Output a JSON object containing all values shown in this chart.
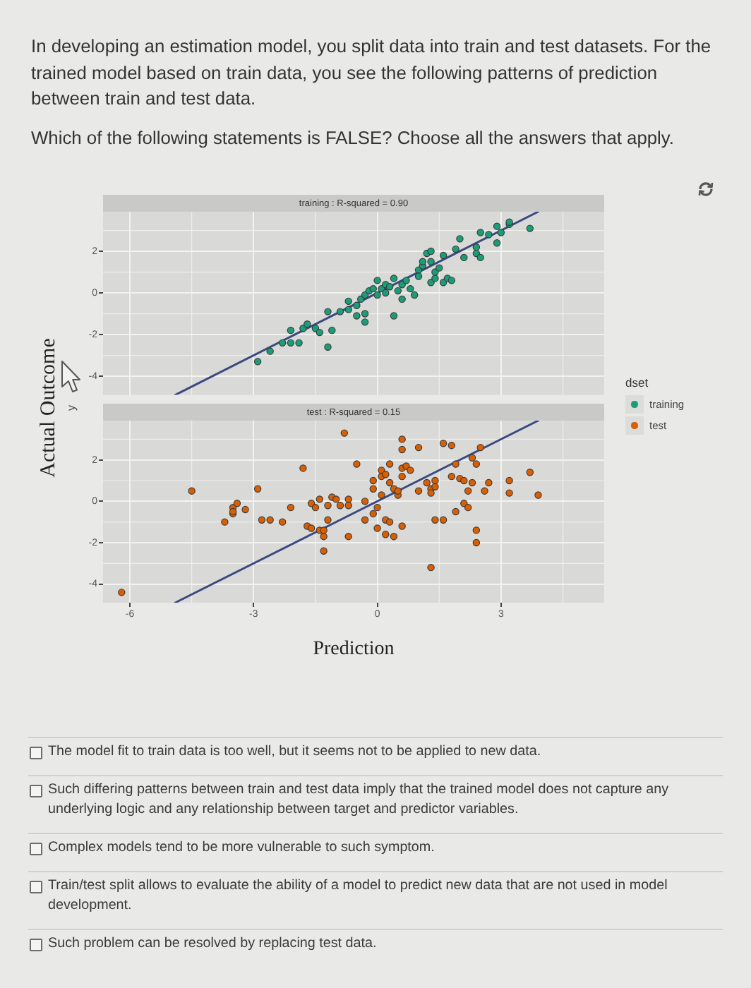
{
  "chart_data": [
    {
      "type": "other",
      "title": "In developing an estimation model, you split data into train and test datasets. For the trained model based on train data, you see the following patterns of prediction between train and test data.",
      "subtitle": "Which of the following statements is FALSE? Choose all the answers that apply."
    },
    {
      "type": "scatter",
      "title": "training : R-squared = 0.90",
      "ylabel": "y",
      "legend_title": "dset",
      "legend": "right",
      "grid": true,
      "marker": "circle",
      "tick_labels": "y",
      "xlim": [
        -6.65,
        5.5
      ],
      "xticks": [
        -6,
        -3,
        0,
        3
      ],
      "ylim": [
        -4.9,
        3.9
      ],
      "yticks": [
        -4,
        -2,
        0,
        2
      ],
      "series": [
        {
          "name": "training",
          "color": "#1b9e77",
          "x": [
            -2.9,
            -2.6,
            -2.3,
            -2.1,
            -1.9,
            -2.1,
            -1.8,
            -1.7,
            -1.5,
            -1.4,
            -1.2,
            -1.1,
            -1.2,
            -0.9,
            -0.7,
            -0.7,
            -0.5,
            -0.5,
            -0.3,
            -0.3,
            -0.4,
            -0.3,
            -0.2,
            -0.1,
            0,
            0,
            0.1,
            0.2,
            0.2,
            0.3,
            0.4,
            0.4,
            0.5,
            0.6,
            0.6,
            0.7,
            0.8,
            0.9,
            1.0,
            1.0,
            1.1,
            1.1,
            1.2,
            1.3,
            1.3,
            1.3,
            1.4,
            1.4,
            1.5,
            1.6,
            1.6,
            1.7,
            1.8,
            1.9,
            2.0,
            2.1,
            2.4,
            2.4,
            2.5,
            2.5,
            2.7,
            2.9,
            2.9,
            3.0,
            3.2,
            3.2,
            3.7
          ],
          "values": [
            -3.3,
            -2.8,
            -2.4,
            -2.4,
            -2.4,
            -1.8,
            -1.7,
            -1.5,
            -1.7,
            -1.9,
            -2.6,
            -1.8,
            -0.9,
            -0.9,
            -0.4,
            -0.8,
            -0.6,
            -1.1,
            -1.0,
            -1.4,
            -0.3,
            -0.1,
            0.1,
            0.2,
            0.6,
            -0.1,
            0.2,
            0.4,
            0,
            0.3,
            -1.1,
            0.7,
            0.1,
            -0.3,
            0.4,
            0.6,
            0.2,
            -0.1,
            1.1,
            0.8,
            1.3,
            1.5,
            1.9,
            1.5,
            2.0,
            0.5,
            1.0,
            0.7,
            1.2,
            1.8,
            0.5,
            0.7,
            0.6,
            2.1,
            2.6,
            1.7,
            2.2,
            1.9,
            1.7,
            2.9,
            2.8,
            2.4,
            3.2,
            2.9,
            3.3,
            3.4,
            3.1
          ]
        },
        {
          "type": "line",
          "marker": "none",
          "color": "#3b4a80",
          "x": [
            -4.9,
            3.9
          ],
          "values": [
            -4.9,
            3.9
          ]
        }
      ]
    },
    {
      "type": "scatter",
      "title": "test : R-squared = 0.15",
      "ylabel": "Actual Outcome",
      "xlabel": "Prediction",
      "legend": "right",
      "grid": true,
      "marker": "circle",
      "xlim": [
        -6.65,
        5.5
      ],
      "xticks": [
        -6,
        -3,
        0,
        3
      ],
      "ylim": [
        -4.9,
        3.9
      ],
      "yticks": [
        -4,
        -2,
        0,
        2
      ],
      "series": [
        {
          "name": "test",
          "color": "#d95f02",
          "x": [
            -6.2,
            -4.5,
            -3.7,
            -3.5,
            -3.5,
            -3.4,
            -3.5,
            -3.2,
            -2.9,
            -2.8,
            -2.6,
            -2.3,
            -2.1,
            -1.8,
            -1.7,
            -1.6,
            -1.6,
            -1.5,
            -1.4,
            -1.4,
            -1.3,
            -1.3,
            -1.3,
            -1.2,
            -1.2,
            -1.1,
            -1.0,
            -0.9,
            -0.8,
            -0.7,
            -0.7,
            -0.7,
            -0.5,
            -0.3,
            -0.3,
            -0.1,
            -0.1,
            -0.1,
            0,
            0,
            0.1,
            0.1,
            0.1,
            0.2,
            0.2,
            0.2,
            0.3,
            0.3,
            0.3,
            0.4,
            0.4,
            0.5,
            0.5,
            0.6,
            0.6,
            0.6,
            0.6,
            0.6,
            0.7,
            0.8,
            1.0,
            1.0,
            1.2,
            1.3,
            1.3,
            1.3,
            1.4,
            1.4,
            1.4,
            1.6,
            1.6,
            1.8,
            1.8,
            1.9,
            1.9,
            2.0,
            2.1,
            2.1,
            2.2,
            2.2,
            2.3,
            2.3,
            2.4,
            2.5,
            2.4,
            2.4,
            2.6,
            2.7,
            3.2,
            3.2,
            3.7,
            3.9
          ],
          "values": [
            -4.4,
            0.5,
            -1.0,
            -0.6,
            -0.3,
            -0.1,
            -0.5,
            -0.4,
            0.6,
            -0.9,
            -0.9,
            -1.0,
            -0.3,
            1.6,
            -1.2,
            -1.3,
            -0.1,
            -0.3,
            -1.4,
            0.1,
            -1.7,
            -1.4,
            -2.4,
            -0.2,
            -0.9,
            0.2,
            0.1,
            -0.2,
            3.3,
            0.1,
            -1.7,
            -0.2,
            1.8,
            0,
            -0.9,
            1.0,
            0.6,
            -0.6,
            -0.3,
            -1.3,
            0.3,
            1.2,
            1.5,
            -1.6,
            -0.9,
            1.3,
            1.8,
            0.9,
            -1.0,
            -1.7,
            0.6,
            0.3,
            0.5,
            1.6,
            3.0,
            2.5,
            1.2,
            -1.2,
            1.7,
            1.5,
            0.5,
            2.6,
            0.9,
            -3.2,
            0.6,
            0.4,
            0.7,
            1.0,
            -0.9,
            -0.9,
            2.8,
            2.7,
            1.2,
            1.8,
            -0.5,
            1.1,
            1.0,
            -0.1,
            0.5,
            -0.3,
            0.9,
            2.1,
            1.8,
            2.6,
            -1.4,
            -2.0,
            0.5,
            0.9,
            1.0,
            0.4,
            1.4,
            0.3
          ]
        },
        {
          "type": "line",
          "marker": "none",
          "color": "#3b4a80",
          "x": [
            -4.9,
            3.9
          ],
          "values": [
            -4.9,
            3.9
          ]
        }
      ]
    },
    {
      "type": "other",
      "annotations": [
        "The model fit to train data is too well, but it seems not to be applied to new data.",
        "Such differing patterns between train and test data imply that the trained model does not capture any underlying logic and any relationship between target and predictor variables.",
        "Complex models tend to be more vulnerable to such symptom.",
        "Train/test split allows to evaluate the ability of a model to predict new data that are not used in model development.",
        "Such problem can be resolved by replacing test data."
      ]
    }
  ]
}
